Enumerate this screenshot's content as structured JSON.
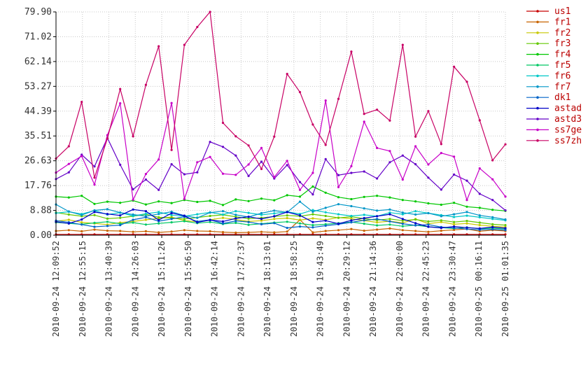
{
  "chart_data": {
    "type": "line",
    "title": "",
    "xlabel": "",
    "ylabel": "",
    "ylim": [
      0,
      79.9
    ],
    "y_ticks": [
      "0.00",
      "8.88",
      "17.76",
      "26.63",
      "35.51",
      "44.39",
      "53.27",
      "62.14",
      "71.02",
      "79.90"
    ],
    "x_ticks": [
      "2010-09-24 12:09:52",
      "2010-09-24 12:55:15",
      "2010-09-24 13:40:39",
      "2010-09-24 14:26:03",
      "2010-09-24 15:11:26",
      "2010-09-24 15:56:50",
      "2010-09-24 16:42:14",
      "2010-09-24 17:27:37",
      "2010-09-24 18:13:01",
      "2010-09-24 18:58:25",
      "2010-09-24 19:43:49",
      "2010-09-24 20:29:12",
      "2010-09-24 21:14:36",
      "2010-09-24 22:00:00",
      "2010-09-24 22:45:23",
      "2010-09-24 23:30:47",
      "2010-09-25 00:16:11",
      "2010-09-25 01:01:35"
    ],
    "grid": true,
    "legend_position": "right",
    "series": [
      {
        "name": "us1",
        "color": "#c80000",
        "values": [
          0.3,
          0.3,
          0.3,
          0.3,
          0.3,
          0.3,
          0.3,
          0.3,
          0.3,
          0.3,
          0.3,
          0.3,
          0.3,
          0.3,
          0.3,
          0.3,
          0.3,
          0.3,
          0.3,
          0.3,
          0.3,
          0.3,
          0.3,
          0.3,
          0.3,
          0.3,
          0.3,
          0.3,
          0.3,
          0.3,
          0.3,
          0.3,
          0.3,
          0.3,
          0.3,
          0.3
        ]
      },
      {
        "name": "fr1",
        "color": "#c86400",
        "values": [
          1.5,
          1.8,
          1.4,
          2.0,
          1.6,
          1.5,
          1.2,
          1.4,
          1.0,
          1.3,
          1.8,
          1.5,
          1.4,
          1.1,
          0.9,
          1.0,
          1.2,
          1.0,
          1.3,
          5.5,
          1.0,
          1.5,
          1.8,
          2.2,
          1.6,
          2.0,
          2.4,
          1.8,
          1.5,
          1.2,
          1.6,
          1.9,
          2.2,
          1.4,
          1.8,
          1.5
        ]
      },
      {
        "name": "fr2",
        "color": "#c8c800",
        "values": [
          5.0,
          5.5,
          4.6,
          4.2,
          3.8,
          4.5,
          4.9,
          5.5,
          6.0,
          6.5,
          5.2,
          4.8,
          5.5,
          6.2,
          5.6,
          4.9,
          5.2,
          5.8,
          6.1,
          5.4,
          6.0,
          5.5,
          6.3,
          5.9,
          5.2,
          4.6,
          5.0,
          4.4,
          5.8,
          4.1,
          4.7,
          3.9,
          4.2,
          3.6,
          3.2,
          2.9
        ]
      },
      {
        "name": "fr3",
        "color": "#64c800",
        "values": [
          8.1,
          7.4,
          6.8,
          7.2,
          5.9,
          6.2,
          6.8,
          7.5,
          6.4,
          6.1,
          5.8,
          6.3,
          6.9,
          7.3,
          6.6,
          5.9,
          6.2,
          6.7,
          7.1,
          6.8,
          7.5,
          6.9,
          6.2,
          6.6,
          5.9,
          5.4,
          5.8,
          5.2,
          5.6,
          4.9,
          5.3,
          4.7,
          5.1,
          4.5,
          3.9,
          3.6
        ]
      },
      {
        "name": "fr4",
        "color": "#00c800",
        "values": [
          13.8,
          13.5,
          14.1,
          11.2,
          12.0,
          11.6,
          12.4,
          11.0,
          12.1,
          11.5,
          12.6,
          11.9,
          12.3,
          10.8,
          12.8,
          12.2,
          13.1,
          12.5,
          14.3,
          13.8,
          17.4,
          15.2,
          13.6,
          12.9,
          13.7,
          14.1,
          13.5,
          12.6,
          12.1,
          11.4,
          10.9,
          11.6,
          10.2,
          9.8,
          9.1,
          8.7
        ]
      },
      {
        "name": "fr5",
        "color": "#00c864",
        "values": [
          4.6,
          4.2,
          3.9,
          4.4,
          4.8,
          4.1,
          4.5,
          3.8,
          4.2,
          4.6,
          5.0,
          4.3,
          4.7,
          4.0,
          4.4,
          3.7,
          4.1,
          4.5,
          4.8,
          4.2,
          3.6,
          3.9,
          4.3,
          4.7,
          4.1,
          3.5,
          3.8,
          3.2,
          3.6,
          3.0,
          2.7,
          2.4,
          2.8,
          2.3,
          2.5,
          2.2
        ]
      },
      {
        "name": "fr6",
        "color": "#00c8c8",
        "values": [
          7.9,
          8.4,
          7.6,
          8.8,
          7.4,
          8.1,
          6.9,
          7.7,
          8.3,
          7.2,
          6.8,
          7.5,
          8.2,
          7.4,
          8.6,
          8.0,
          7.3,
          7.8,
          8.4,
          7.6,
          9.0,
          8.2,
          7.5,
          6.9,
          7.3,
          6.8,
          8.1,
          7.5,
          8.6,
          7.9,
          7.2,
          6.5,
          7.0,
          6.4,
          5.8,
          5.3
        ]
      },
      {
        "name": "fr7",
        "color": "#0096c8",
        "values": [
          11.0,
          8.5,
          7.2,
          8.9,
          9.3,
          8.1,
          7.4,
          6.8,
          7.6,
          8.4,
          7.0,
          6.2,
          8.1,
          8.6,
          7.3,
          6.5,
          7.9,
          8.8,
          8.2,
          12.0,
          8.4,
          9.8,
          11.1,
          10.4,
          9.6,
          8.8,
          9.2,
          8.1,
          7.4,
          7.9,
          6.8,
          7.5,
          8.3,
          7.1,
          6.4,
          5.6
        ]
      },
      {
        "name": "dk1",
        "color": "#0064c8",
        "values": [
          5.2,
          4.6,
          3.8,
          3.0,
          3.3,
          3.6,
          5.5,
          6.4,
          5.0,
          5.8,
          6.6,
          4.9,
          5.5,
          4.2,
          5.1,
          4.7,
          3.9,
          4.3,
          2.6,
          3.1,
          2.8,
          3.4,
          3.9,
          4.6,
          5.3,
          5.8,
          4.9,
          4.1,
          3.5,
          3.8,
          2.9,
          2.6,
          2.2,
          1.9,
          2.1,
          1.8
        ]
      },
      {
        "name": "astad",
        "color": "#0000c8",
        "values": [
          4.8,
          4.2,
          5.6,
          8.3,
          7.6,
          7.1,
          9.2,
          8.6,
          5.4,
          7.9,
          7.0,
          4.6,
          5.4,
          4.9,
          6.0,
          6.6,
          5.8,
          6.8,
          8.3,
          7.1,
          4.7,
          5.2,
          4.1,
          5.3,
          6.1,
          6.8,
          7.5,
          5.8,
          4.3,
          3.0,
          2.6,
          3.1,
          2.7,
          2.4,
          2.9,
          2.5
        ]
      },
      {
        "name": "astd3",
        "color": "#6400c8",
        "values": [
          20.1,
          22.5,
          28.8,
          24.6,
          34.8,
          25.2,
          16.4,
          19.9,
          16.2,
          25.4,
          21.8,
          22.5,
          33.4,
          31.6,
          28.5,
          21.2,
          26.3,
          20.3,
          25.1,
          19.0,
          14.6,
          27.2,
          21.5,
          22.3,
          22.8,
          20.3,
          26.1,
          28.5,
          25.4,
          20.6,
          16.3,
          21.7,
          19.5,
          14.8,
          12.6,
          8.9
        ]
      },
      {
        "name": "ss7ge",
        "color": "#c800c8",
        "values": [
          22.4,
          25.5,
          28.3,
          18.1,
          35.8,
          47.2,
          12.7,
          21.9,
          27.1,
          47.3,
          13.0,
          26.1,
          28.0,
          22.0,
          21.6,
          25.3,
          31.2,
          20.8,
          26.6,
          16.2,
          22.3,
          48.2,
          17.2,
          24.7,
          40.6,
          31.2,
          30.1,
          19.9,
          31.8,
          25.3,
          29.4,
          28.1,
          12.6,
          23.9,
          20.0,
          13.8
        ]
      },
      {
        "name": "ss7zh",
        "color": "#c80064",
        "values": [
          27.4,
          31.8,
          47.7,
          20.6,
          34.6,
          52.3,
          35.4,
          53.8,
          67.6,
          30.5,
          68.1,
          74.5,
          79.9,
          40.2,
          35.4,
          32.1,
          23.7,
          35.3,
          57.7,
          51.2,
          39.6,
          32.3,
          48.8,
          65.7,
          43.4,
          44.9,
          41.0,
          68.1,
          35.3,
          44.4,
          32.6,
          60.3,
          54.9,
          41.1,
          26.8,
          32.5
        ]
      }
    ]
  }
}
